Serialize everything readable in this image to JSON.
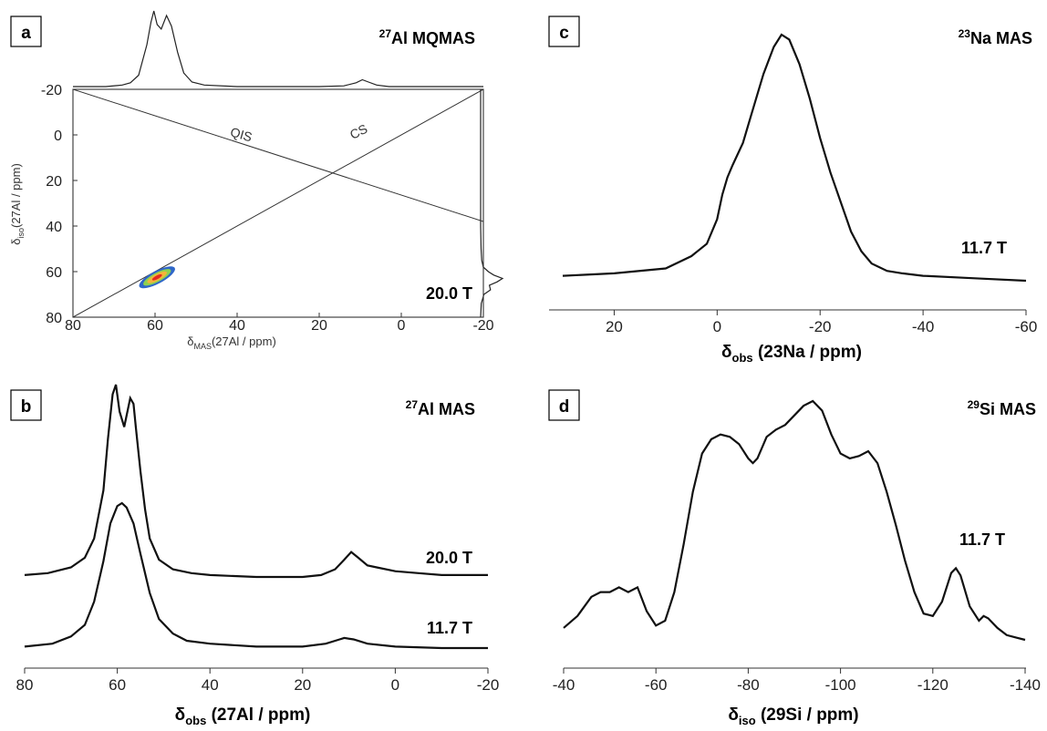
{
  "panels": {
    "a": {
      "letter": "a",
      "title_sup": "27",
      "title_rest": "Al MQMAS",
      "field": "20.0 T",
      "xlabel": {
        "pre": "δ",
        "sub": "MAS",
        "post": "(27Al / ppm)"
      },
      "ylabel": {
        "pre": "δ",
        "sub": "iso",
        "post": "(27Al / ppm)"
      },
      "x_ticks": [
        "80",
        "60",
        "40",
        "20",
        "0",
        "-20"
      ],
      "y_ticks": [
        "-20",
        "0",
        "20",
        "40",
        "60",
        "80"
      ],
      "line_labels": [
        "QIS",
        "CS"
      ]
    },
    "b": {
      "letter": "b",
      "title_sup": "27",
      "title_rest": "Al MAS",
      "trace_labels": [
        "20.0 T",
        "11.7 T"
      ],
      "xlabel": {
        "pre": "δ",
        "sub": "obs",
        "post": " (27Al / ppm)"
      },
      "x_ticks": [
        "80",
        "60",
        "40",
        "20",
        "0",
        "-20"
      ]
    },
    "c": {
      "letter": "c",
      "title_sup": "23",
      "title_rest": "Na MAS",
      "field": "11.7 T",
      "xlabel": {
        "pre": "δ",
        "sub": "obs",
        "post": " (23Na / ppm)"
      },
      "x_ticks": [
        "20",
        "0",
        "-20",
        "-40",
        "-60"
      ]
    },
    "d": {
      "letter": "d",
      "title_sup": "29",
      "title_rest": "Si MAS",
      "field": "11.7 T",
      "xlabel": {
        "pre": "δ",
        "sub": "iso",
        "post": " (29Si / ppm)"
      },
      "x_ticks": [
        "-40",
        "-60",
        "-80",
        "-100",
        "-120",
        "-140"
      ]
    }
  },
  "chart_data": [
    {
      "panel": "a",
      "type": "heatmap",
      "title": "27Al MQMAS",
      "xlabel": "δMAS(27Al / ppm)",
      "ylabel": "δiso(27Al / ppm)",
      "xlim": [
        80,
        -20
      ],
      "ylim": [
        -20,
        80
      ],
      "lines": [
        {
          "name": "QIS",
          "points": [
            [
              80,
              -20
            ],
            [
              -20,
              38
            ]
          ]
        },
        {
          "name": "CS",
          "points": [
            [
              80,
              80
            ],
            [
              -20,
              -20
            ]
          ]
        }
      ],
      "contour_center": [
        59.5,
        62.5
      ],
      "top_projection": {
        "x": [
          80,
          72,
          68,
          66,
          64,
          62,
          61,
          60.3,
          59.5,
          58.5,
          57.2,
          56,
          54.5,
          53,
          51,
          48,
          40,
          30,
          20,
          14,
          11,
          9.5,
          8,
          6,
          3,
          0,
          -10,
          -20
        ],
        "y": [
          0.0,
          0.0,
          0.02,
          0.05,
          0.15,
          0.55,
          0.85,
          1.0,
          0.82,
          0.76,
          0.94,
          0.8,
          0.45,
          0.18,
          0.06,
          0.02,
          0.0,
          0.0,
          0.0,
          0.01,
          0.05,
          0.09,
          0.06,
          0.02,
          0.0,
          0.0,
          0.0,
          0.0
        ]
      },
      "side_projection": {
        "y": [
          -20,
          40,
          50,
          55,
          58,
          60,
          61.5,
          63,
          64.5,
          66,
          68,
          70,
          74,
          80
        ],
        "x": [
          0.0,
          0.0,
          0.02,
          0.05,
          0.12,
          0.35,
          0.6,
          1.0,
          0.75,
          0.4,
          0.45,
          0.15,
          0.03,
          0.0
        ]
      }
    },
    {
      "panel": "b",
      "type": "line",
      "title": "27Al MAS",
      "xlabel": "δobs (27Al / ppm)",
      "xlim": [
        80,
        -20
      ],
      "series": [
        {
          "name": "20.0 T",
          "x": [
            80,
            75,
            70,
            67,
            65,
            63,
            62,
            61,
            60.3,
            59.5,
            58.5,
            57.2,
            56.5,
            56,
            55,
            54,
            53,
            51,
            48,
            44,
            40,
            30,
            20,
            16,
            13,
            11,
            9.5,
            8,
            6,
            4,
            0,
            -5,
            -10,
            -20
          ],
          "y": [
            0.01,
            0.02,
            0.05,
            0.1,
            0.2,
            0.45,
            0.72,
            0.95,
            1.0,
            0.86,
            0.78,
            0.93,
            0.9,
            0.78,
            0.55,
            0.35,
            0.2,
            0.09,
            0.04,
            0.02,
            0.01,
            0.0,
            0.0,
            0.01,
            0.04,
            0.09,
            0.13,
            0.1,
            0.06,
            0.05,
            0.03,
            0.02,
            0.01,
            0.01
          ]
        },
        {
          "name": "11.7 T",
          "x": [
            80,
            74,
            70,
            67,
            65,
            63,
            61.5,
            60,
            59,
            58,
            56.5,
            55,
            53,
            51,
            48,
            45,
            40,
            30,
            20,
            15,
            12,
            11,
            9,
            6,
            0,
            -10,
            -20
          ],
          "y": [
            0.01,
            0.03,
            0.08,
            0.16,
            0.32,
            0.6,
            0.86,
            0.98,
            1.0,
            0.97,
            0.86,
            0.65,
            0.38,
            0.2,
            0.1,
            0.05,
            0.03,
            0.01,
            0.01,
            0.03,
            0.06,
            0.07,
            0.06,
            0.03,
            0.01,
            0.0,
            0.0
          ]
        }
      ]
    },
    {
      "panel": "c",
      "type": "line",
      "title": "23Na MAS",
      "xlabel": "δobs (23Na / ppm)",
      "xlim": [
        30,
        -60
      ],
      "series": [
        {
          "name": "11.7 T",
          "x": [
            30,
            20,
            10,
            5,
            2,
            0,
            -1,
            -2,
            -3,
            -5,
            -7,
            -9,
            -11,
            -12.5,
            -14,
            -16,
            -18,
            -20,
            -22,
            -24,
            -26,
            -28,
            -30,
            -33,
            -36,
            -40,
            -50,
            -60
          ],
          "y": [
            0.02,
            0.03,
            0.05,
            0.1,
            0.15,
            0.25,
            0.35,
            0.42,
            0.47,
            0.56,
            0.7,
            0.84,
            0.95,
            1.0,
            0.98,
            0.88,
            0.74,
            0.58,
            0.44,
            0.32,
            0.2,
            0.12,
            0.07,
            0.04,
            0.03,
            0.02,
            0.01,
            0.0
          ]
        }
      ]
    },
    {
      "panel": "d",
      "type": "line",
      "title": "29Si MAS",
      "xlabel": "δiso (29Si / ppm)",
      "xlim": [
        -40,
        -140
      ],
      "series": [
        {
          "name": "11.7 T",
          "x": [
            -40,
            -43,
            -46,
            -48,
            -50,
            -52,
            -54,
            -56,
            -58,
            -60,
            -62,
            -64,
            -66,
            -68,
            -70,
            -72,
            -74,
            -76,
            -78,
            -80,
            -81,
            -82,
            -84,
            -86,
            -88,
            -90,
            -92,
            -94,
            -96,
            -98,
            -100,
            -102,
            -104,
            -106,
            -108,
            -110,
            -112,
            -114,
            -116,
            -118,
            -120,
            -122,
            -124,
            -125,
            -126,
            -128,
            -130,
            -131,
            -132,
            -134,
            -136,
            -138,
            -140
          ],
          "y": [
            0.05,
            0.1,
            0.18,
            0.2,
            0.2,
            0.22,
            0.2,
            0.22,
            0.12,
            0.06,
            0.08,
            0.2,
            0.4,
            0.62,
            0.78,
            0.84,
            0.86,
            0.85,
            0.82,
            0.76,
            0.74,
            0.76,
            0.85,
            0.88,
            0.9,
            0.94,
            0.98,
            1.0,
            0.96,
            0.86,
            0.78,
            0.76,
            0.77,
            0.79,
            0.74,
            0.62,
            0.48,
            0.33,
            0.2,
            0.11,
            0.1,
            0.16,
            0.28,
            0.3,
            0.27,
            0.14,
            0.08,
            0.1,
            0.09,
            0.05,
            0.02,
            0.01,
            0.0
          ]
        }
      ]
    }
  ]
}
